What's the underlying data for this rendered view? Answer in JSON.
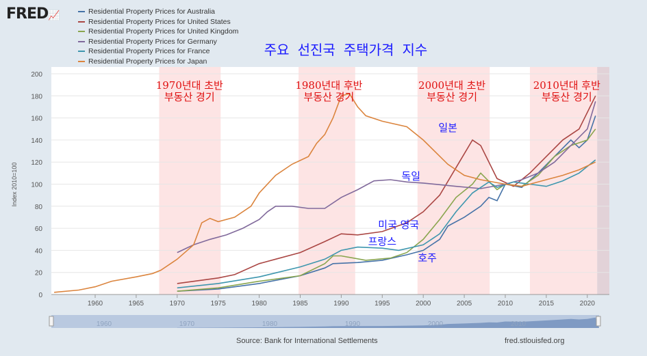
{
  "logo": "FRED",
  "source": "Source: Bank for International Settlements",
  "url": "fred.stlouisfed.org",
  "chart_data": {
    "type": "line",
    "title": "주요 선진국 주택가격 지수",
    "ylabel": "Index 2010=100",
    "ylim": [
      0,
      200
    ],
    "xlim": [
      1955,
      2022
    ],
    "yticks": [
      "0",
      "20",
      "40",
      "60",
      "80",
      "100",
      "120",
      "140",
      "160",
      "180",
      "200"
    ],
    "xticks": [
      "1960",
      "1965",
      "1970",
      "1975",
      "1980",
      "1985",
      "1990",
      "1995",
      "2000",
      "2005",
      "2010",
      "2015",
      "2020"
    ],
    "navigator_labels": [
      "1960",
      "1970",
      "1980",
      "1990",
      "2000",
      "2010"
    ],
    "shaded_periods": [
      [
        1967.8,
        1975.3
      ],
      [
        1984.8,
        1991.7
      ],
      [
        1999.3,
        2008.1
      ],
      [
        2013,
        2021.2
      ]
    ],
    "annotations": [
      {
        "year": 1971.5,
        "lines": [
          "1970년대 초반",
          "부동산 경기"
        ]
      },
      {
        "year": 1988.5,
        "lines": [
          "1980년대 후반",
          "부동산 경기"
        ]
      },
      {
        "year": 2003.5,
        "lines": [
          "2000년대 초반",
          "부동산 경기"
        ]
      },
      {
        "year": 2017.5,
        "lines": [
          "2010년대 후반",
          "부동산 경기"
        ]
      }
    ],
    "series_labels": [
      {
        "text": "일본",
        "x": 2003,
        "y": 148
      },
      {
        "text": "독일",
        "x": 1998.5,
        "y": 104
      },
      {
        "text": "미국 영국",
        "x": 1997,
        "y": 60
      },
      {
        "text": "프랑스",
        "x": 1995,
        "y": 45
      },
      {
        "text": "호주",
        "x": 2000.5,
        "y": 30
      }
    ],
    "series": [
      {
        "name": "Residential Property Prices for Australia",
        "color": "#4572a7",
        "x": [
          1970,
          1975,
          1980,
          1985,
          1988,
          1989,
          1992,
          1995,
          1998,
          2000,
          2002,
          2003,
          2005,
          2007,
          2008,
          2009,
          2010,
          2012,
          2014,
          2016,
          2018,
          2019,
          2020,
          2021
        ],
        "y": [
          3,
          5,
          10,
          17,
          24,
          28,
          29,
          31,
          36,
          40,
          50,
          62,
          70,
          80,
          88,
          85,
          100,
          97,
          110,
          125,
          140,
          133,
          140,
          162
        ]
      },
      {
        "name": "Residential Property Prices for United States",
        "color": "#aa4643",
        "x": [
          1970,
          1975,
          1977,
          1980,
          1982,
          1985,
          1988,
          1990,
          1992,
          1995,
          1998,
          2000,
          2002,
          2004,
          2006,
          2007,
          2009,
          2011,
          2013,
          2015,
          2017,
          2019,
          2021
        ],
        "y": [
          10,
          15,
          18,
          28,
          32,
          38,
          48,
          55,
          54,
          57,
          65,
          75,
          90,
          115,
          140,
          135,
          105,
          98,
          110,
          125,
          140,
          150,
          180
        ]
      },
      {
        "name": "Residential Property Prices for United Kingdom",
        "color": "#89a54e",
        "x": [
          1970,
          1975,
          1980,
          1985,
          1988,
          1989,
          1990,
          1993,
          1996,
          1998,
          2000,
          2002,
          2004,
          2006,
          2007,
          2009,
          2010,
          2012,
          2014,
          2016,
          2018,
          2020,
          2021
        ],
        "y": [
          3,
          6,
          12,
          17,
          28,
          35,
          35,
          31,
          33,
          38,
          50,
          68,
          88,
          100,
          110,
          95,
          100,
          98,
          108,
          125,
          135,
          140,
          150
        ]
      },
      {
        "name": "Residential Property Prices for Germany",
        "color": "#80699b",
        "x": [
          1970,
          1972,
          1974,
          1976,
          1978,
          1980,
          1981,
          1982,
          1984,
          1986,
          1988,
          1990,
          1992,
          1994,
          1996,
          1998,
          2000,
          2004,
          2007,
          2010,
          2012,
          2014,
          2016,
          2018,
          2020,
          2021
        ],
        "y": [
          38,
          45,
          50,
          54,
          60,
          68,
          75,
          80,
          80,
          78,
          78,
          88,
          95,
          103,
          104,
          102,
          101,
          98,
          96,
          100,
          104,
          110,
          120,
          135,
          150,
          175
        ]
      },
      {
        "name": "Residential Property Prices for France",
        "color": "#3d96ae",
        "x": [
          1970,
          1975,
          1980,
          1985,
          1988,
          1990,
          1992,
          1995,
          1997,
          2000,
          2002,
          2004,
          2006,
          2008,
          2009,
          2011,
          2013,
          2015,
          2017,
          2019,
          2021
        ],
        "y": [
          6,
          10,
          16,
          25,
          32,
          40,
          43,
          42,
          40,
          45,
          55,
          75,
          92,
          102,
          97,
          102,
          100,
          98,
          103,
          110,
          122
        ]
      },
      {
        "name": "Residential Property Prices for Japan",
        "color": "#db843d",
        "x": [
          1955,
          1958,
          1960,
          1962,
          1965,
          1967,
          1968,
          1970,
          1972,
          1973,
          1974,
          1975,
          1977,
          1979,
          1980,
          1982,
          1984,
          1986,
          1987,
          1988,
          1989,
          1990,
          1991,
          1992,
          1993,
          1995,
          1998,
          2000,
          2003,
          2005,
          2007,
          2010,
          2012,
          2013,
          2015,
          2017,
          2019,
          2021
        ],
        "y": [
          2,
          4,
          7,
          12,
          16,
          19,
          22,
          32,
          45,
          65,
          69,
          66,
          70,
          80,
          92,
          108,
          118,
          125,
          137,
          145,
          160,
          180,
          182,
          170,
          162,
          157,
          152,
          140,
          118,
          108,
          104,
          100,
          98,
          100,
          104,
          108,
          113,
          120
        ]
      }
    ]
  }
}
